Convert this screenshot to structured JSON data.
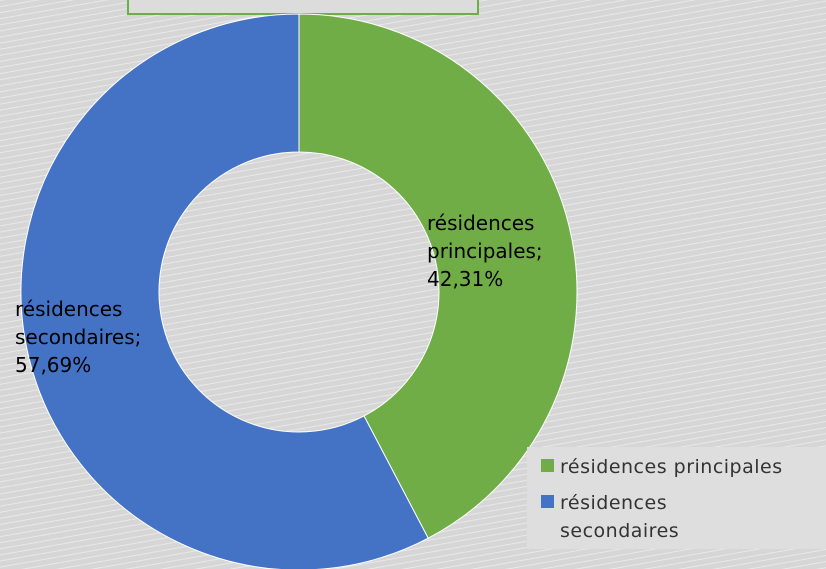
{
  "chart_data": {
    "type": "donut",
    "categories": [
      "résidences principales",
      "résidences secondaires"
    ],
    "values": [
      42.31,
      57.69
    ],
    "value_labels": [
      "résidences principales; 42,31%",
      "résidences secondaires; 57,69%"
    ],
    "colors": [
      "#70ad47",
      "#4472c4"
    ],
    "legend": "bottom-right"
  }
}
